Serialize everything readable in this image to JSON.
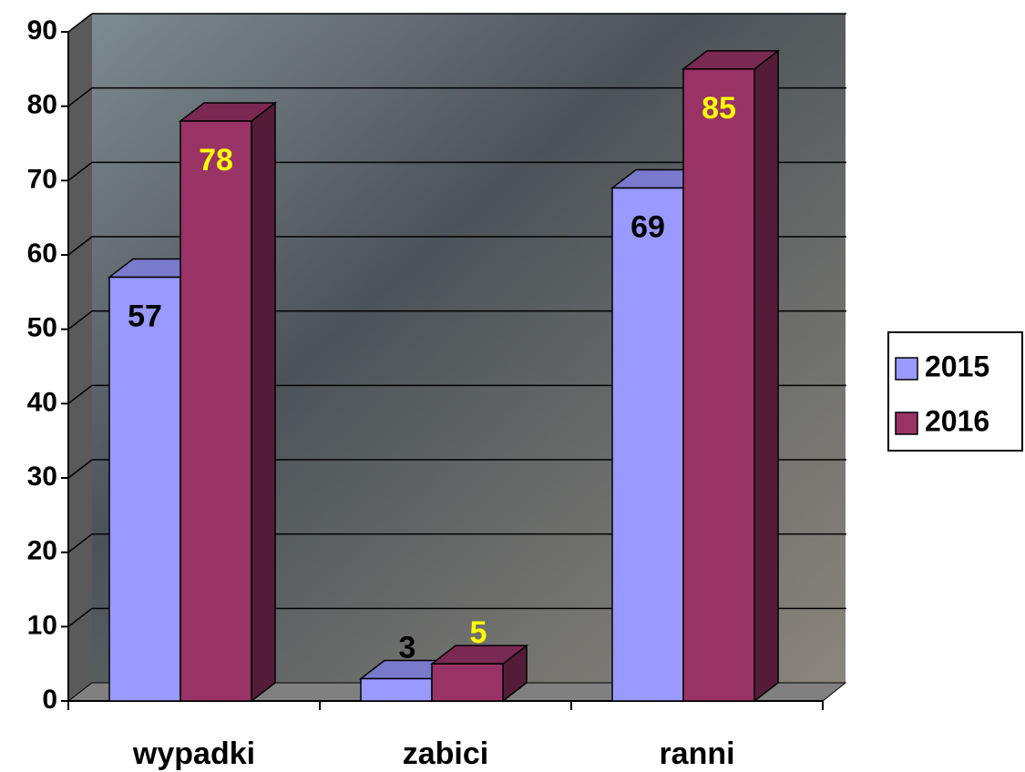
{
  "chart_data": {
    "type": "bar",
    "categories": [
      "wypadki",
      "zabici",
      "ranni"
    ],
    "series": [
      {
        "name": "2015",
        "color": "#9999ff",
        "values": [
          57,
          3,
          69
        ]
      },
      {
        "name": "2016",
        "color": "#993366",
        "values": [
          78,
          5,
          85
        ]
      }
    ],
    "ylim": [
      0,
      90
    ],
    "yticks": [
      0,
      10,
      20,
      30,
      40,
      50,
      60,
      70,
      80,
      90
    ],
    "grid": true,
    "legend": "right"
  }
}
